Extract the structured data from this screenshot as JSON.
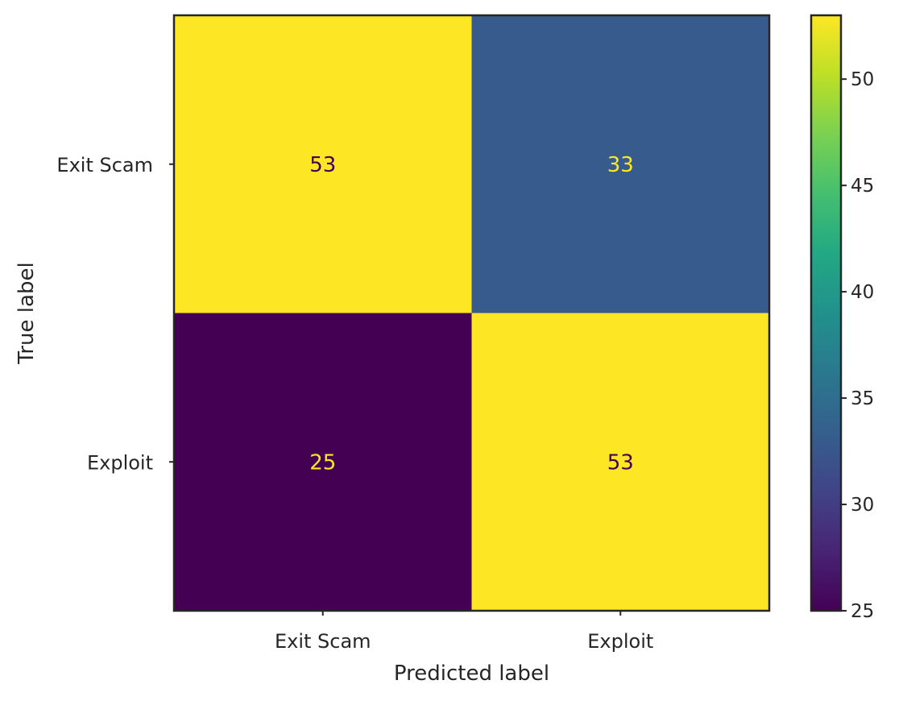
{
  "chart_data": {
    "type": "heatmap",
    "title": "",
    "xlabel": "Predicted label",
    "ylabel": "True label",
    "x_categories": [
      "Exit Scam",
      "Exploit"
    ],
    "y_categories": [
      "Exit Scam",
      "Exploit"
    ],
    "values": [
      [
        53,
        33
      ],
      [
        25,
        53
      ]
    ],
    "colormap": "viridis",
    "color_range": [
      25,
      53
    ],
    "colorbar_ticks": [
      25,
      30,
      35,
      40,
      45,
      50
    ],
    "grid": false
  },
  "colors": {
    "low_text": "#fde725",
    "high_text": "#440154",
    "frame": "#262626"
  }
}
